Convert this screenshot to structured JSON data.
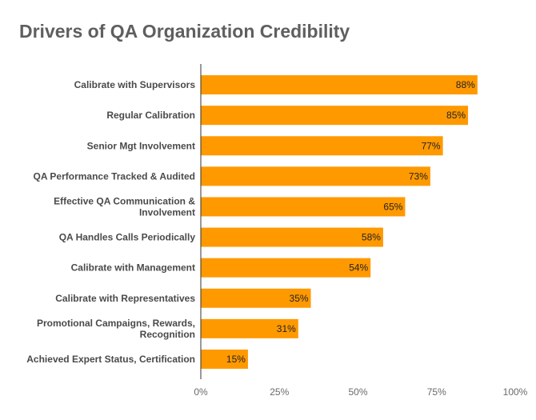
{
  "chart_data": {
    "type": "bar",
    "orientation": "horizontal",
    "title": "Drivers of QA Organization Credibility",
    "categories": [
      "Calibrate with Supervisors",
      "Regular Calibration",
      "Senior Mgt Involvement",
      "QA Performance Tracked & Audited",
      "Effective QA Communication & Involvement",
      "QA Handles Calls Periodically",
      "Calibrate with Management",
      "Calibrate with Representatives",
      "Promotional Campaigns, Rewards, Recognition",
      "Achieved Expert Status, Certification"
    ],
    "category_lines": [
      [
        "Calibrate with Supervisors"
      ],
      [
        "Regular Calibration"
      ],
      [
        "Senior Mgt Involvement"
      ],
      [
        "QA Performance Tracked & Audited"
      ],
      [
        "Effective QA Communication &",
        "Involvement"
      ],
      [
        "QA Handles Calls Periodically"
      ],
      [
        "Calibrate with Management"
      ],
      [
        "Calibrate with Representatives"
      ],
      [
        "Promotional Campaigns, Rewards,",
        "Recognition"
      ],
      [
        "Achieved Expert Status, Certification"
      ]
    ],
    "values": [
      88,
      85,
      77,
      73,
      65,
      58,
      54,
      35,
      31,
      15
    ],
    "data_labels": [
      "88%",
      "85%",
      "77%",
      "73%",
      "65%",
      "58%",
      "54%",
      "35%",
      "31%",
      "15%"
    ],
    "xlim": [
      0,
      100
    ],
    "x_ticks": [
      0,
      25,
      50,
      75,
      100
    ],
    "x_tick_labels": [
      "0%",
      "25%",
      "50%",
      "75%",
      "100%"
    ],
    "grid": false,
    "legend": "none",
    "bar_color": "#FF9900"
  }
}
